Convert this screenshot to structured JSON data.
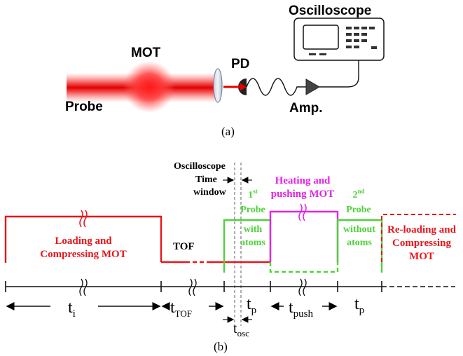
{
  "setup": {
    "oscilloscope_label": "Oscilloscope",
    "mot_label": "MOT",
    "pd_label": "PD",
    "probe_label": "Probe",
    "amp_label": "Amp.",
    "caption_a": "(a)"
  },
  "timing": {
    "osc_window_line1": "Oscilloscope",
    "osc_window_line2": "Time",
    "osc_window_line3": "window",
    "loading_line1": "Loading and",
    "loading_line2": "Compressing MOT",
    "tof_label": "TOF",
    "probe1_sup": "st",
    "probe1_line1_num": "1",
    "probe1_line2": "Probe",
    "probe1_line3": "with",
    "probe1_line4": "atoms",
    "heating_line1": "Heating and",
    "heating_line2": "pushing MOT",
    "probe2_num": "2",
    "probe2_sup": "nd",
    "probe2_line2": "Probe",
    "probe2_line3": "without",
    "probe2_line4": "atoms",
    "reload_line1": "Re-loading and",
    "reload_line2": "Compressing",
    "reload_line3": "MOT",
    "t_i_base": "t",
    "t_i_sub": "i",
    "t_tof_base": "t",
    "t_tof_sub": "TOF",
    "t_p1_base": "t",
    "t_p1_sub": "p",
    "t_push_base": "t",
    "t_push_sub": "push",
    "t_p2_base": "t",
    "t_p2_sub": "p",
    "t_osc_base": "t",
    "t_osc_sub": "osc",
    "caption_b": "(b)"
  },
  "colors": {
    "red": "#e8151b",
    "green": "#4fd23a",
    "magenta": "#e523e5",
    "gray": "#9a9a9a"
  }
}
